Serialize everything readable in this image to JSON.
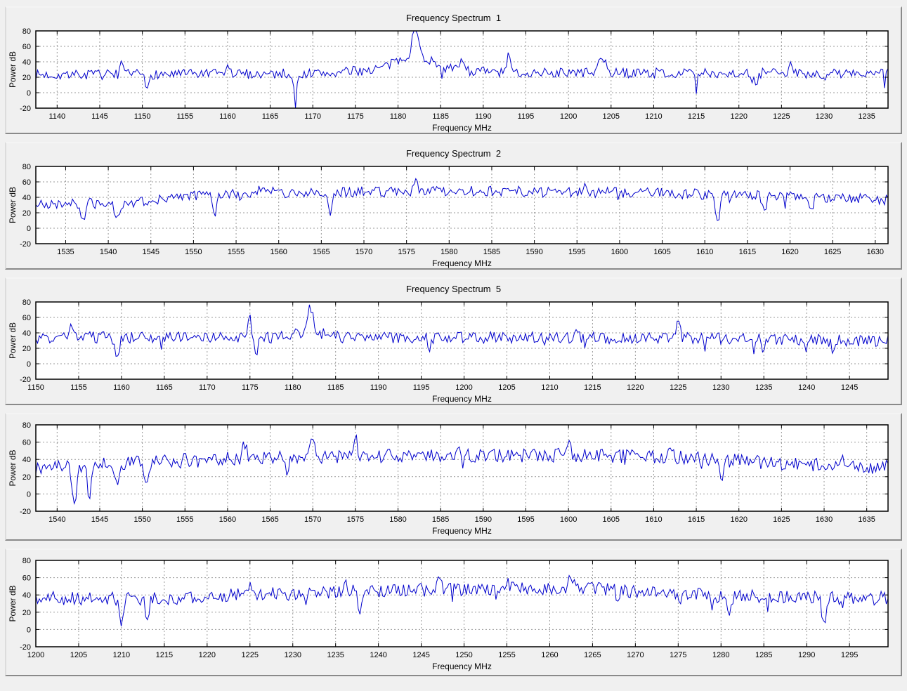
{
  "window": {
    "name": "frequency-spectra-viewer",
    "background": "#f0f0f0"
  },
  "styles": {
    "line_color": "#0000cc",
    "plot_bg": "#ffffff",
    "grid_color": "#999999",
    "axis_color": "#000000",
    "text_color": "#000000",
    "panel_bg": "#f0f0f0"
  },
  "chart_data": [
    {
      "type": "line",
      "title": "Frequency Spectrum  1",
      "xlabel": "Frequency MHz",
      "ylabel": "Power dB",
      "xlim": [
        1137.5,
        1237.5
      ],
      "ylim": [
        -20,
        80
      ],
      "xtick_start": 1140,
      "xtick_step": 5,
      "xtick_end": 1235,
      "yticks": [
        -20,
        0,
        20,
        40,
        60,
        80
      ],
      "grid": true,
      "legend": false,
      "n_points": 490,
      "seed": 7,
      "noise_amp": 6.5,
      "dropout_prob": 0.035,
      "dropout_depth": 15,
      "baseline": [
        [
          1137.5,
          23
        ],
        [
          1172,
          25
        ],
        [
          1177,
          30
        ],
        [
          1182,
          37
        ],
        [
          1186,
          30
        ],
        [
          1192,
          26
        ],
        [
          1237.5,
          25
        ]
      ],
      "peaks": [
        [
          1182,
          42,
          0.45
        ],
        [
          1182,
          13,
          2.5
        ],
        [
          1187.5,
          19,
          0.3
        ],
        [
          1193,
          21,
          0.3
        ],
        [
          1204,
          15,
          0.7
        ],
        [
          1147.5,
          11,
          0.3
        ],
        [
          1160,
          9,
          0.3
        ],
        [
          1226,
          9,
          0.3
        ]
      ],
      "dips": [
        [
          1168,
          27,
          0.28
        ],
        [
          1150.5,
          20,
          0.28
        ],
        [
          1222,
          22,
          0.3
        ],
        [
          1215,
          13,
          0.25
        ],
        [
          1230,
          12,
          0.25
        ]
      ]
    },
    {
      "type": "line",
      "title": "Frequency Spectrum  2",
      "xlabel": "Frequency MHz",
      "ylabel": "Power dB",
      "xlim": [
        1531.5,
        1631.5
      ],
      "ylim": [
        -20,
        80
      ],
      "xtick_start": 1535,
      "xtick_step": 5,
      "xtick_end": 1630,
      "yticks": [
        -20,
        0,
        20,
        40,
        60,
        80
      ],
      "grid": true,
      "legend": false,
      "n_points": 490,
      "seed": 21,
      "noise_amp": 7,
      "dropout_prob": 0.03,
      "dropout_depth": 14,
      "baseline": [
        [
          1531.5,
          31
        ],
        [
          1542,
          33
        ],
        [
          1548,
          40
        ],
        [
          1556,
          46
        ],
        [
          1580,
          48
        ],
        [
          1605,
          46
        ],
        [
          1615,
          42
        ],
        [
          1624,
          39
        ],
        [
          1631.5,
          37
        ]
      ],
      "peaks": [
        [
          1576,
          17,
          0.3
        ],
        [
          1558,
          8,
          0.3
        ],
        [
          1596,
          9,
          0.4
        ]
      ],
      "dips": [
        [
          1537,
          22,
          0.3
        ],
        [
          1541,
          26,
          0.3
        ],
        [
          1552.5,
          30,
          0.3
        ],
        [
          1566,
          30,
          0.3
        ],
        [
          1611.5,
          32,
          0.4
        ],
        [
          1617,
          20,
          0.3
        ],
        [
          1622.5,
          16,
          0.3
        ]
      ]
    },
    {
      "type": "line",
      "title": "Frequency Spectrum  5",
      "xlabel": "Frequency MHz",
      "ylabel": "Power dB",
      "xlim": [
        1150,
        1249.5
      ],
      "ylim": [
        -20,
        80
      ],
      "xtick_start": 1150,
      "xtick_step": 5,
      "xtick_end": 1245,
      "yticks": [
        -20,
        0,
        20,
        40,
        60,
        80
      ],
      "grid": true,
      "legend": false,
      "n_points": 490,
      "seed": 33,
      "noise_amp": 7.5,
      "dropout_prob": 0.04,
      "dropout_depth": 14,
      "baseline": [
        [
          1150,
          31
        ],
        [
          1153,
          34
        ],
        [
          1200,
          34
        ],
        [
          1230,
          33
        ],
        [
          1249.5,
          29
        ]
      ],
      "peaks": [
        [
          1182,
          31,
          0.5
        ],
        [
          1182,
          8,
          2.2
        ],
        [
          1175,
          26,
          0.25
        ],
        [
          1225,
          27,
          0.3
        ],
        [
          1154,
          13,
          0.3
        ],
        [
          1213,
          10,
          0.3
        ]
      ],
      "dips": [
        [
          1159.5,
          32,
          0.3
        ],
        [
          1175.8,
          26,
          0.2
        ],
        [
          1196,
          18,
          0.25
        ],
        [
          1235,
          14,
          0.25
        ],
        [
          1243,
          12,
          0.25
        ]
      ]
    },
    {
      "type": "line",
      "title": "",
      "xlabel": "Frequency MHz",
      "ylabel": "Power dB",
      "xlim": [
        1537.5,
        1637.5
      ],
      "ylim": [
        -20,
        80
      ],
      "xtick_start": 1540,
      "xtick_step": 5,
      "xtick_end": 1635,
      "yticks": [
        -20,
        0,
        20,
        40,
        60,
        80
      ],
      "grid": true,
      "legend": false,
      "n_points": 490,
      "seed": 45,
      "noise_amp": 8,
      "dropout_prob": 0.04,
      "dropout_depth": 14,
      "baseline": [
        [
          1537.5,
          31
        ],
        [
          1544,
          34
        ],
        [
          1552,
          38
        ],
        [
          1565,
          43
        ],
        [
          1600,
          45
        ],
        [
          1612,
          43
        ],
        [
          1620,
          38
        ],
        [
          1630,
          33
        ],
        [
          1637.5,
          31
        ]
      ],
      "peaks": [
        [
          1562,
          15,
          0.3
        ],
        [
          1570,
          22,
          0.3
        ],
        [
          1575,
          21,
          0.3
        ],
        [
          1587,
          14,
          0.3
        ],
        [
          1600,
          20,
          0.3
        ],
        [
          1612,
          16,
          0.3
        ],
        [
          1632,
          10,
          0.3
        ]
      ],
      "dips": [
        [
          1542,
          44,
          0.35
        ],
        [
          1543.8,
          40,
          0.3
        ],
        [
          1547,
          28,
          0.3
        ],
        [
          1550.5,
          28,
          0.3
        ],
        [
          1567,
          30,
          0.3
        ],
        [
          1618,
          22,
          0.3
        ]
      ]
    },
    {
      "type": "line",
      "title": "",
      "xlabel": "Frequency MHz",
      "ylabel": "Power dB",
      "xlim": [
        1200,
        1299.5
      ],
      "ylim": [
        -20,
        80
      ],
      "xtick_start": 1200,
      "xtick_step": 5,
      "xtick_end": 1295,
      "yticks": [
        -20,
        0,
        20,
        40,
        60,
        80
      ],
      "grid": true,
      "legend": false,
      "n_points": 490,
      "seed": 57,
      "noise_amp": 8,
      "dropout_prob": 0.04,
      "dropout_depth": 14,
      "baseline": [
        [
          1200,
          36
        ],
        [
          1218,
          36
        ],
        [
          1224,
          40
        ],
        [
          1240,
          45
        ],
        [
          1250,
          47
        ],
        [
          1266,
          47
        ],
        [
          1272,
          42
        ],
        [
          1282,
          38
        ],
        [
          1299.5,
          36
        ]
      ],
      "peaks": [
        [
          1225,
          22,
          0.3
        ],
        [
          1247,
          12,
          0.3
        ],
        [
          1255,
          11,
          0.3
        ],
        [
          1262.5,
          15,
          0.35
        ],
        [
          1236,
          10,
          0.3
        ]
      ],
      "dips": [
        [
          1210,
          29,
          0.35
        ],
        [
          1213,
          25,
          0.3
        ],
        [
          1237.8,
          26,
          0.3
        ],
        [
          1292,
          29,
          0.35
        ],
        [
          1281,
          16,
          0.3
        ],
        [
          1268,
          12,
          0.25
        ]
      ]
    }
  ]
}
